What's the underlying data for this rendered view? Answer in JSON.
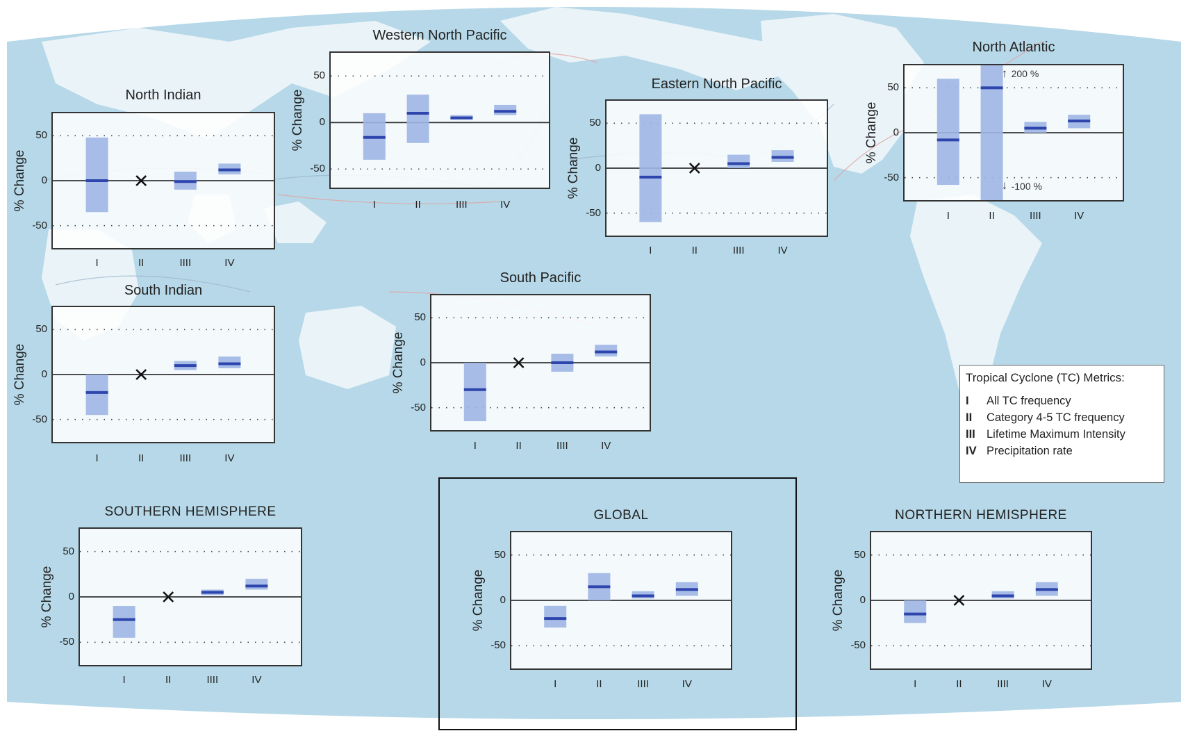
{
  "colors": {
    "ocean": "#b6d8e8",
    "land": "#eaf4f8",
    "range_fill": "#9fb6e4",
    "median": "#2e45ad",
    "marker": "#111111"
  },
  "legend": {
    "title": "Tropical Cyclone (TC) Metrics:",
    "items": [
      {
        "num": "I",
        "label": "All TC frequency"
      },
      {
        "num": "II",
        "label": "Category 4-5 TC frequency"
      },
      {
        "num": "III",
        "label": "Lifetime Maximum Intensity"
      },
      {
        "num": "IV",
        "label": "Precipitation rate"
      }
    ]
  },
  "chart_data": [
    {
      "type": "bar",
      "title": "Western North Pacific",
      "ylabel": "% Change",
      "ylim": [
        -70,
        75
      ],
      "yticks": [
        50,
        0,
        -50
      ],
      "grid": "dotted",
      "categories": [
        "I",
        "II",
        "IIII",
        "IV"
      ],
      "low": [
        -40,
        -22,
        3,
        8
      ],
      "median": [
        -16,
        10,
        5,
        12
      ],
      "high": [
        10,
        30,
        8,
        19
      ],
      "not_shown": [
        false,
        false,
        false,
        false
      ]
    },
    {
      "type": "bar",
      "title": "North Indian",
      "ylabel": "% Change",
      "ylim": [
        -75,
        75
      ],
      "yticks": [
        50,
        0,
        -50
      ],
      "grid": "dotted",
      "categories": [
        "I",
        "II",
        "IIII",
        "IV"
      ],
      "low": [
        -35,
        null,
        -10,
        7
      ],
      "median": [
        0,
        null,
        -1,
        12
      ],
      "high": [
        48,
        null,
        10,
        19
      ],
      "not_shown": [
        false,
        true,
        false,
        false
      ]
    },
    {
      "type": "bar",
      "title": "Eastern North Pacific",
      "ylabel": "% Change",
      "ylim": [
        -75,
        75
      ],
      "yticks": [
        50,
        0,
        -50
      ],
      "grid": "dotted",
      "categories": [
        "I",
        "II",
        "IIII",
        "IV"
      ],
      "low": [
        -60,
        null,
        0,
        7
      ],
      "median": [
        -10,
        null,
        5,
        12
      ],
      "high": [
        60,
        null,
        15,
        20
      ],
      "not_shown": [
        false,
        true,
        false,
        false
      ]
    },
    {
      "type": "bar",
      "title": "North Atlantic",
      "ylabel": "% Change",
      "ylim": [
        -75,
        75
      ],
      "yticks": [
        50,
        0,
        -50
      ],
      "grid": "dotted",
      "categories": [
        "I",
        "II",
        "IIII",
        "IV"
      ],
      "low": [
        -58,
        -100,
        0,
        5
      ],
      "median": [
        -8,
        50,
        5,
        13
      ],
      "high": [
        60,
        200,
        12,
        20
      ],
      "not_shown": [
        false,
        false,
        false,
        false
      ],
      "annotations": [
        "200 %",
        "-100 %"
      ]
    },
    {
      "type": "bar",
      "title": "South Indian",
      "ylabel": "% Change",
      "ylim": [
        -75,
        75
      ],
      "yticks": [
        50,
        0,
        -50
      ],
      "grid": "dotted",
      "categories": [
        "I",
        "II",
        "IIII",
        "IV"
      ],
      "low": [
        -45,
        null,
        5,
        7
      ],
      "median": [
        -20,
        null,
        10,
        12
      ],
      "high": [
        0,
        null,
        15,
        20
      ],
      "not_shown": [
        false,
        true,
        false,
        false
      ]
    },
    {
      "type": "bar",
      "title": "South Pacific",
      "ylabel": "% Change",
      "ylim": [
        -75,
        75
      ],
      "yticks": [
        50,
        0,
        -50
      ],
      "grid": "dotted",
      "categories": [
        "I",
        "II",
        "IIII",
        "IV"
      ],
      "low": [
        -65,
        null,
        -10,
        7
      ],
      "median": [
        -30,
        null,
        0,
        12
      ],
      "high": [
        0,
        null,
        10,
        20
      ],
      "not_shown": [
        false,
        true,
        false,
        false
      ]
    },
    {
      "type": "bar",
      "title": "SOUTHERN HEMISPHERE",
      "ylabel": "% Change",
      "ylim": [
        -75,
        75
      ],
      "yticks": [
        50,
        0,
        -50
      ],
      "grid": "dotted",
      "categories": [
        "I",
        "II",
        "IIII",
        "IV"
      ],
      "low": [
        -45,
        null,
        2,
        8
      ],
      "median": [
        -25,
        null,
        5,
        12
      ],
      "high": [
        -10,
        null,
        8,
        20
      ],
      "not_shown": [
        false,
        true,
        false,
        false
      ]
    },
    {
      "type": "bar",
      "title": "GLOBAL",
      "ylabel": "% Change",
      "ylim": [
        -75,
        75
      ],
      "yticks": [
        50,
        0,
        -50
      ],
      "grid": "dotted",
      "categories": [
        "I",
        "II",
        "IIII",
        "IV"
      ],
      "low": [
        -30,
        0,
        2,
        5
      ],
      "median": [
        -20,
        15,
        5,
        12
      ],
      "high": [
        -6,
        30,
        10,
        20
      ],
      "not_shown": [
        false,
        false,
        false,
        false
      ]
    },
    {
      "type": "bar",
      "title": "NORTHERN HEMISPHERE",
      "ylabel": "% Change",
      "ylim": [
        -75,
        75
      ],
      "yticks": [
        50,
        0,
        -50
      ],
      "grid": "dotted",
      "categories": [
        "I",
        "II",
        "IIII",
        "IV"
      ],
      "low": [
        -25,
        null,
        2,
        5
      ],
      "median": [
        -15,
        null,
        5,
        12
      ],
      "high": [
        0,
        null,
        10,
        20
      ],
      "not_shown": [
        false,
        true,
        false,
        false
      ]
    }
  ]
}
